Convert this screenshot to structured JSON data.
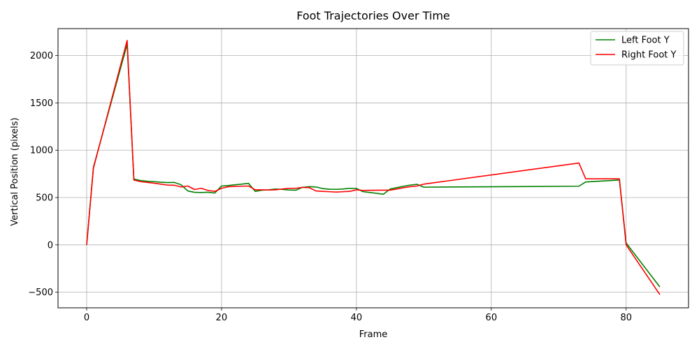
{
  "chart_data": {
    "type": "line",
    "title": "Foot Trajectories Over Time",
    "xlabel": "Frame",
    "ylabel": "Vertical Position (pixels)",
    "xlim": [
      -4.25,
      89.25
    ],
    "ylim": [
      -665,
      2285
    ],
    "xticks": [
      0,
      20,
      40,
      60,
      80
    ],
    "yticks": [
      -500,
      0,
      500,
      1000,
      1500,
      2000
    ],
    "grid": true,
    "legend_position": "top-right",
    "colors": {
      "left": "#008000",
      "right": "#ff0000"
    },
    "series": [
      {
        "name": "Left Foot Y",
        "color": "#008000",
        "x": [
          0,
          1,
          6,
          7,
          8,
          9,
          10,
          11,
          12,
          13,
          14,
          15,
          16,
          17,
          18,
          19,
          20,
          21,
          22,
          23,
          24,
          25,
          26,
          27,
          28,
          29,
          30,
          31,
          32,
          33,
          34,
          35,
          36,
          37,
          38,
          39,
          40,
          41,
          42,
          43,
          44,
          45,
          46,
          47,
          48,
          49,
          50,
          73,
          74,
          79,
          80,
          85
        ],
        "y": [
          0,
          820,
          2120,
          695,
          680,
          672,
          668,
          662,
          658,
          660,
          635,
          570,
          555,
          553,
          556,
          548,
          622,
          627,
          635,
          642,
          650,
          565,
          578,
          582,
          590,
          586,
          580,
          578,
          608,
          615,
          612,
          595,
          588,
          587,
          590,
          598,
          596,
          562,
          553,
          545,
          535,
          590,
          605,
          620,
          632,
          640,
          610,
          620,
          665,
          685,
          20,
          -445
        ]
      },
      {
        "name": "Right Foot Y",
        "color": "#ff0000",
        "x": [
          0,
          1,
          6,
          7,
          8,
          9,
          10,
          11,
          12,
          13,
          14,
          15,
          16,
          17,
          18,
          19,
          20,
          21,
          22,
          23,
          24,
          25,
          26,
          27,
          28,
          29,
          30,
          31,
          32,
          33,
          34,
          35,
          36,
          37,
          38,
          39,
          40,
          41,
          44,
          45,
          46,
          47,
          48,
          49,
          50,
          73,
          74,
          79,
          80,
          85
        ],
        "y": [
          0,
          810,
          2160,
          685,
          668,
          660,
          652,
          642,
          632,
          630,
          612,
          622,
          585,
          598,
          575,
          565,
          598,
          615,
          618,
          620,
          622,
          582,
          582,
          580,
          582,
          590,
          598,
          598,
          608,
          605,
          570,
          565,
          562,
          558,
          562,
          565,
          582,
          575,
          578,
          578,
          590,
          605,
          615,
          622,
          642,
          865,
          698,
          698,
          0,
          -525
        ]
      }
    ]
  }
}
